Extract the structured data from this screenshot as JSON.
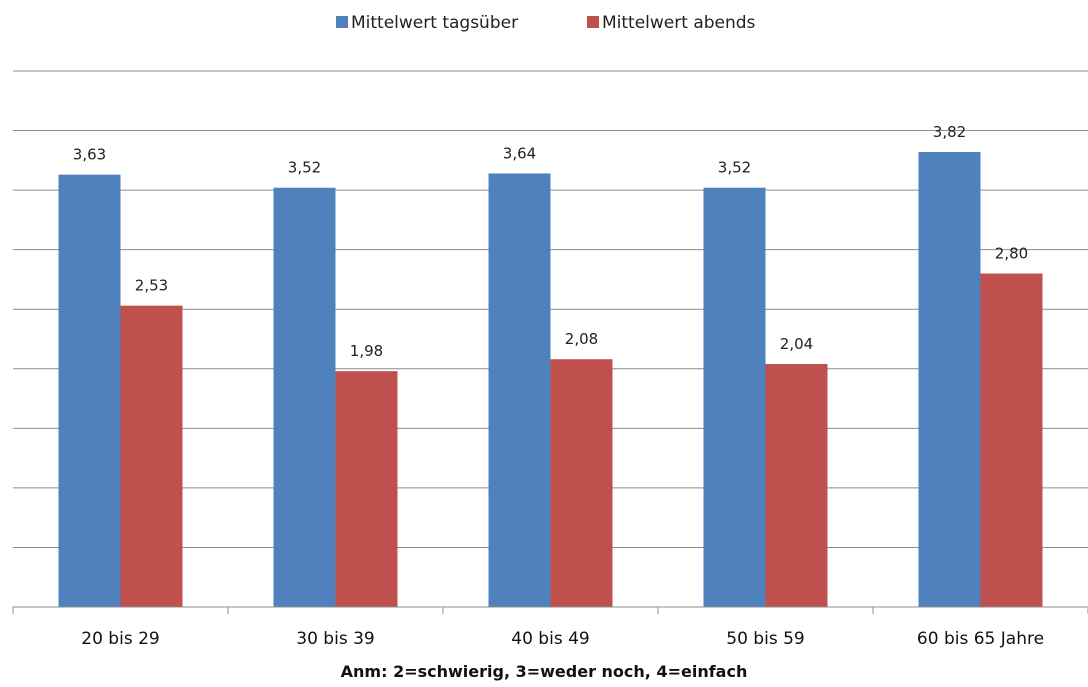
{
  "chart_data": {
    "type": "bar",
    "categories": [
      "20 bis 29",
      "30 bis 39",
      "40 bis 49",
      "50 bis 59",
      "60 bis 65 Jahre"
    ],
    "series": [
      {
        "name": "Mittelwert tagsüber",
        "color": "#4F81BD",
        "values": [
          3.63,
          3.52,
          3.64,
          3.52,
          3.82
        ],
        "labels": [
          "3,63",
          "3,52",
          "3,64",
          "3,52",
          "3,82"
        ]
      },
      {
        "name": "Mittelwert abends",
        "color": "#C0504D",
        "values": [
          2.53,
          1.98,
          2.08,
          2.04,
          2.8
        ],
        "labels": [
          "2,53",
          "1,98",
          "2,08",
          "2,04",
          "2,80"
        ]
      }
    ],
    "ylim": [
      0,
      4.5
    ],
    "ygrid_step": 0.5,
    "grid": true,
    "legend_position": "top-center",
    "note": "Anm: 2=schwierig, 3=weder noch, 4=einfach"
  }
}
